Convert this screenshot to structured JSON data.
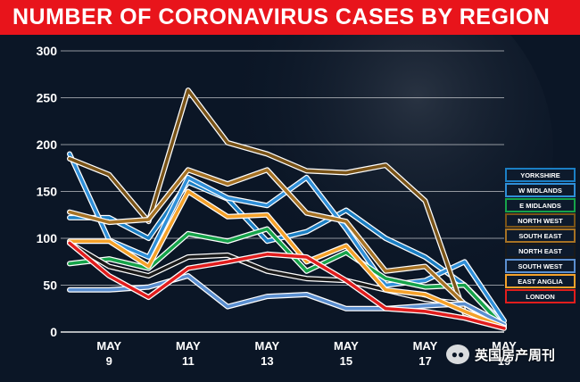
{
  "title": "NUMBER OF CORONAVIRUS CASES BY REGION",
  "watermark": "英国房产周刊",
  "chart_data": {
    "type": "line",
    "title": "NUMBER OF CORONAVIRUS CASES BY REGION",
    "xlabel": "",
    "ylabel": "",
    "x": [
      8,
      9,
      10,
      11,
      12,
      13,
      14,
      15,
      16,
      17,
      18,
      19
    ],
    "x_ticks": [
      {
        "x": 9,
        "month": "MAY",
        "day": "9"
      },
      {
        "x": 11,
        "month": "MAY",
        "day": "11"
      },
      {
        "x": 13,
        "month": "MAY",
        "day": "13"
      },
      {
        "x": 15,
        "month": "MAY",
        "day": "15"
      },
      {
        "x": 17,
        "month": "MAY",
        "day": "17"
      },
      {
        "x": 19,
        "month": "MAY",
        "day": "19"
      }
    ],
    "ylim": [
      0,
      300
    ],
    "y_ticks": [
      0,
      50,
      100,
      150,
      200,
      250,
      300
    ],
    "grid": true,
    "legend_position": "right",
    "series": [
      {
        "name": "YORKSHIRE",
        "color": "#1b7fc4",
        "values": [
          122,
          122,
          100,
          160,
          142,
          97,
          107,
          130,
          100,
          80,
          50,
          8
        ]
      },
      {
        "name": "W MIDLANDS",
        "color": "#2f8fd8",
        "values": [
          190,
          98,
          80,
          165,
          143,
          135,
          165,
          110,
          50,
          55,
          75,
          12
        ]
      },
      {
        "name": "E MIDLANDS",
        "color": "#16a34a",
        "values": [
          73,
          78,
          68,
          105,
          97,
          110,
          65,
          85,
          57,
          48,
          50,
          5
        ]
      },
      {
        "name": "NORTH WEST",
        "color": "#7a5418",
        "values": [
          185,
          168,
          118,
          258,
          202,
          190,
          172,
          170,
          178,
          140,
          20,
          5
        ]
      },
      {
        "name": "SOUTH EAST",
        "color": "#a67224",
        "values": [
          128,
          117,
          120,
          173,
          158,
          173,
          127,
          118,
          65,
          70,
          30,
          7
        ]
      },
      {
        "name": "NORTH EAST",
        "color": "#1a1a1a",
        "values": [
          95,
          70,
          60,
          80,
          82,
          65,
          57,
          55,
          45,
          35,
          30,
          5
        ]
      },
      {
        "name": "SOUTH WEST",
        "color": "#5b8fd0",
        "values": [
          45,
          45,
          48,
          60,
          27,
          38,
          40,
          25,
          25,
          28,
          30,
          8
        ]
      },
      {
        "name": "EAST ANGLIA",
        "color": "#f4a12a",
        "values": [
          97,
          97,
          70,
          150,
          123,
          125,
          75,
          92,
          45,
          40,
          22,
          5
        ]
      },
      {
        "name": "LONDON",
        "color": "#e11d1d",
        "values": [
          95,
          60,
          37,
          68,
          75,
          83,
          80,
          55,
          25,
          22,
          15,
          4
        ]
      }
    ]
  }
}
